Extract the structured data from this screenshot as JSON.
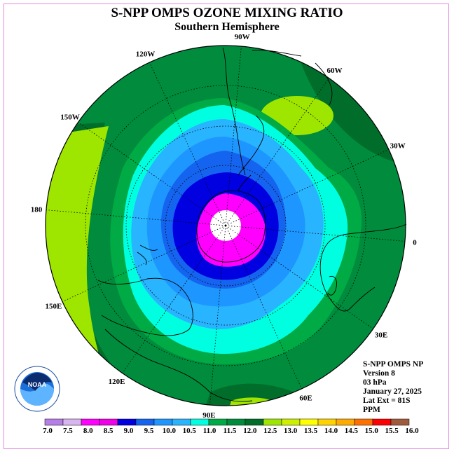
{
  "title": "S-NPP OMPS OZONE MIXING RATIO",
  "subtitle": "Southern Hemisphere",
  "info": {
    "line1": "S-NPP OMPS NP",
    "line2": "Version 8",
    "line3": "03 hPa",
    "line4": "January 27, 2025",
    "line5": "Lat Ext = 81S",
    "line6": "PPM"
  },
  "logo_text": "NOAA",
  "longitude_labels": [
    "90W",
    "60W",
    "30W",
    "0",
    "30E",
    "60E",
    "90E",
    "120E",
    "150E",
    "180",
    "150W",
    "120W"
  ],
  "colorbar": {
    "ticks": [
      "7.0",
      "7.5",
      "8.0",
      "8.5",
      "9.0",
      "9.5",
      "10.0",
      "10.5",
      "11.0",
      "11.5",
      "12.0",
      "12.5",
      "13.0",
      "13.5",
      "14.0",
      "14.5",
      "15.0",
      "15.5",
      "16.0"
    ],
    "colors": [
      "#b57ee8",
      "#d8b4f0",
      "#ff00ff",
      "#f000e8",
      "#0000e0",
      "#1464f0",
      "#1e96ff",
      "#28b4ff",
      "#00ffe0",
      "#00aa44",
      "#008c3c",
      "#006e2a",
      "#9ee600",
      "#ccf000",
      "#ffff00",
      "#ffd200",
      "#ffaa00",
      "#ff7000",
      "#ff0000",
      "#a05a3c"
    ]
  },
  "colors": {
    "green_dark": "#006e2a",
    "green": "#008c3c",
    "green_mid": "#00aa44",
    "yellow_green": "#9ee600",
    "cyan": "#00ffe0",
    "sky": "#28b4ff",
    "azure": "#1e96ff",
    "blue_mid": "#1464f0",
    "blue": "#0000e0",
    "magenta": "#ff00ff"
  }
}
